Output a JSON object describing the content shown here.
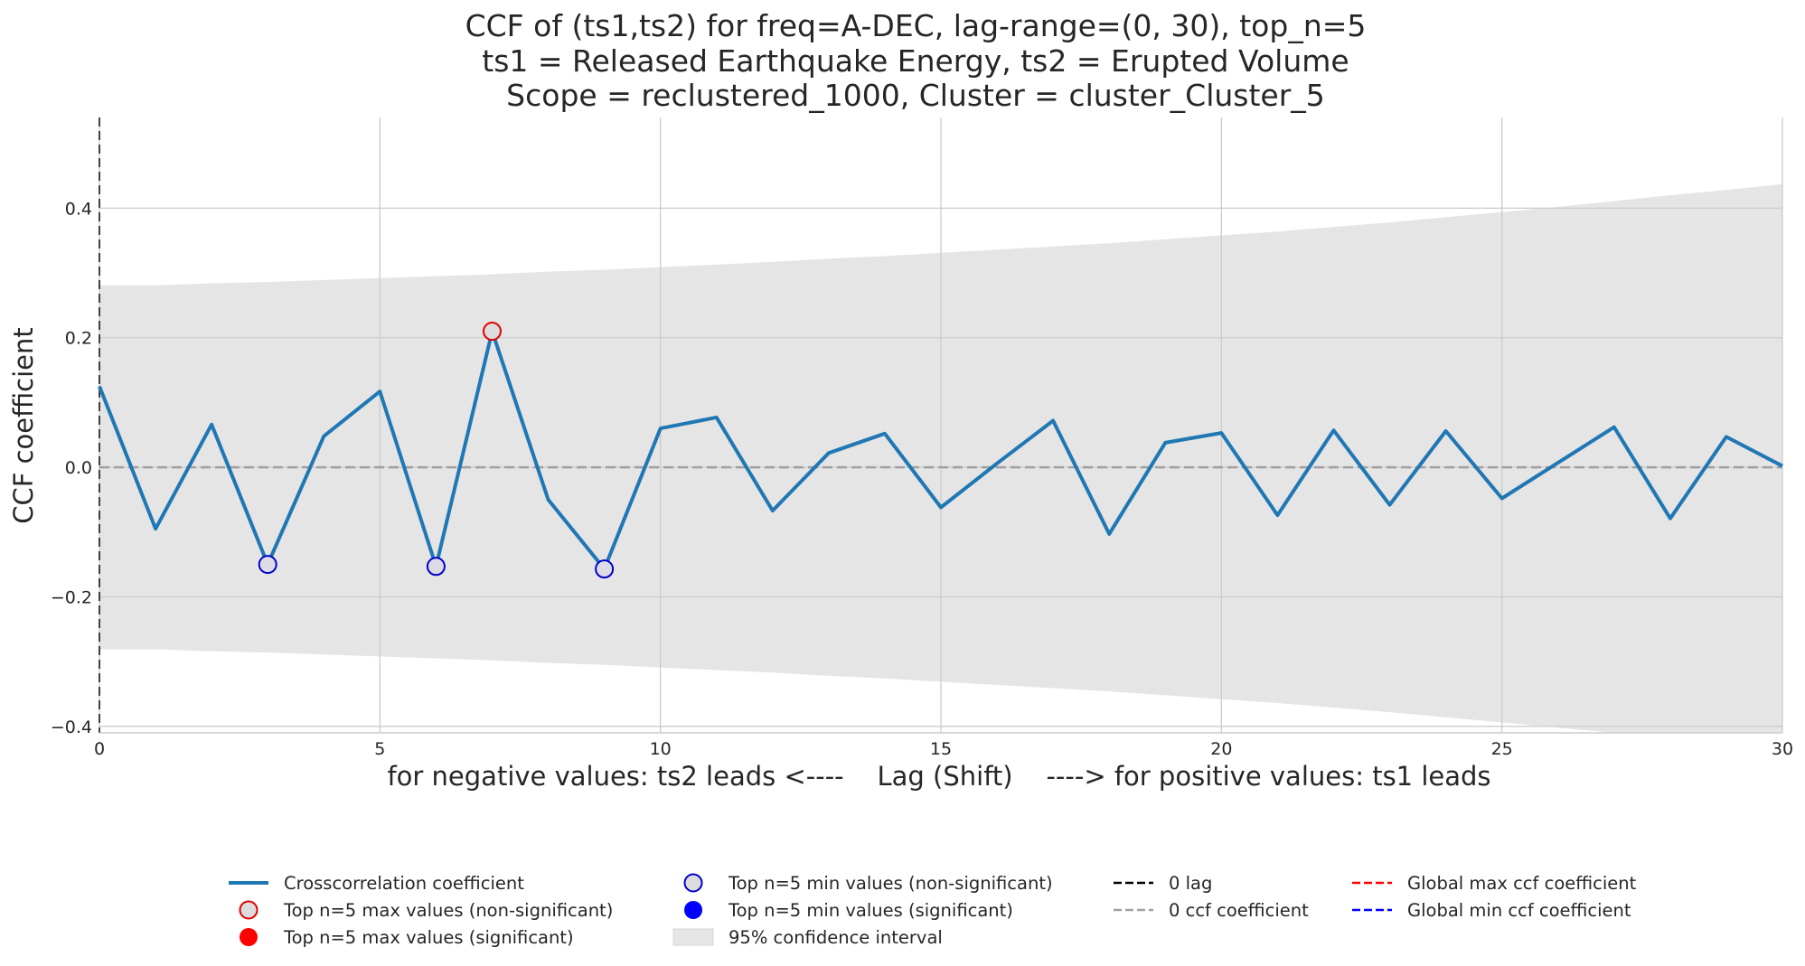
{
  "chart_data": {
    "type": "line",
    "title_lines": [
      "CCF of (ts1,ts2) for freq=A-DEC, lag-range=(0, 30), top_n=5",
      "ts1 = Released Earthquake Energy, ts2 = Erupted Volume",
      "Scope = reclustered_1000, Cluster = cluster_Cluster_5"
    ],
    "xlabel": "for negative values: ts2 leads <----    Lag (Shift)    ----> for positive values: ts1 leads",
    "ylabel": "CCF coefficient",
    "xlim": [
      0,
      30
    ],
    "ylim": [
      -0.41,
      0.54
    ],
    "x_ticks": [
      0,
      5,
      10,
      15,
      20,
      25,
      30
    ],
    "x_tick_labels": [
      "0",
      "5",
      "10",
      "15",
      "20",
      "25",
      "30"
    ],
    "y_ticks": [
      -0.4,
      -0.2,
      0.0,
      0.2,
      0.4
    ],
    "y_tick_labels": [
      "−0.4",
      "−0.2",
      "0.0",
      "0.2",
      "0.4"
    ],
    "grid": true,
    "series": [
      {
        "name": "Crosscorrelation coefficient",
        "color": "#1f77b4",
        "x": [
          0,
          1,
          2,
          3,
          4,
          5,
          6,
          7,
          8,
          9,
          10,
          11,
          12,
          13,
          14,
          15,
          16,
          17,
          18,
          19,
          20,
          21,
          22,
          23,
          24,
          25,
          26,
          27,
          28,
          29,
          30
        ],
        "values": [
          0.125,
          -0.095,
          0.066,
          -0.15,
          0.048,
          0.117,
          -0.153,
          0.21,
          -0.05,
          -0.157,
          0.06,
          0.077,
          -0.067,
          0.022,
          0.052,
          -0.062,
          0.006,
          0.072,
          -0.103,
          0.038,
          0.053,
          -0.074,
          0.057,
          -0.058,
          0.056,
          -0.048,
          0.007,
          0.062,
          -0.079,
          0.047,
          0.002
        ]
      }
    ],
    "confidence_interval": {
      "name": "95% confidence interval",
      "color": "#e5e5e5",
      "x": [
        0,
        1,
        2,
        3,
        4,
        5,
        6,
        7,
        8,
        9,
        10,
        11,
        12,
        13,
        14,
        15,
        16,
        17,
        18,
        19,
        20,
        21,
        22,
        23,
        24,
        25,
        26,
        27,
        28,
        29,
        30
      ],
      "upper": [
        0.281,
        0.281,
        0.284,
        0.286,
        0.289,
        0.292,
        0.295,
        0.298,
        0.302,
        0.305,
        0.309,
        0.313,
        0.317,
        0.322,
        0.326,
        0.331,
        0.336,
        0.341,
        0.346,
        0.352,
        0.358,
        0.364,
        0.371,
        0.378,
        0.386,
        0.394,
        0.402,
        0.411,
        0.42,
        0.428,
        0.437
      ],
      "lower": [
        -0.281,
        -0.281,
        -0.284,
        -0.286,
        -0.289,
        -0.292,
        -0.295,
        -0.298,
        -0.302,
        -0.305,
        -0.309,
        -0.313,
        -0.317,
        -0.322,
        -0.326,
        -0.331,
        -0.336,
        -0.341,
        -0.346,
        -0.352,
        -0.358,
        -0.364,
        -0.371,
        -0.378,
        -0.386,
        -0.394,
        -0.402,
        -0.411,
        -0.42,
        -0.428,
        -0.437
      ]
    },
    "top_max_points": [
      {
        "x": 7,
        "y": 0.21,
        "significant": false
      }
    ],
    "top_min_points": [
      {
        "x": 3,
        "y": -0.15,
        "significant": false
      },
      {
        "x": 6,
        "y": -0.153,
        "significant": false
      },
      {
        "x": 9,
        "y": -0.157,
        "significant": false
      }
    ],
    "zero_lag_line": {
      "x": 0,
      "color": "#262626"
    },
    "zero_ccf_line": {
      "y": 0,
      "color": "#a0a0a0"
    },
    "legend": {
      "placement": "bottom-center",
      "columns": [
        [
          {
            "label": "Crosscorrelation coefficient",
            "marker": "line",
            "color": "#1f77b4"
          },
          {
            "label": "Top n=5 max values (non-significant)",
            "marker": "circle-open",
            "color": "#e00000"
          },
          {
            "label": "Top n=5 max values (significant)",
            "marker": "circle-filled",
            "color": "#ff0000"
          }
        ],
        [
          {
            "label": "Top n=5 min values (non-significant)",
            "marker": "circle-open",
            "color": "#0000cc"
          },
          {
            "label": "Top n=5 min values (significant)",
            "marker": "circle-filled",
            "color": "#0000ff"
          },
          {
            "label": "95% confidence interval",
            "marker": "patch",
            "color": "#e5e5e5"
          }
        ],
        [
          {
            "label": "0 lag",
            "marker": "dash",
            "color": "#000000"
          },
          {
            "label": "0 ccf coefficient",
            "marker": "dash",
            "color": "#a0a0a0"
          }
        ],
        [
          {
            "label": "Global max ccf coefficient",
            "marker": "dash",
            "color": "#ff0000"
          },
          {
            "label": "Global min ccf coefficient",
            "marker": "dash",
            "color": "#0000ff"
          }
        ]
      ]
    }
  }
}
